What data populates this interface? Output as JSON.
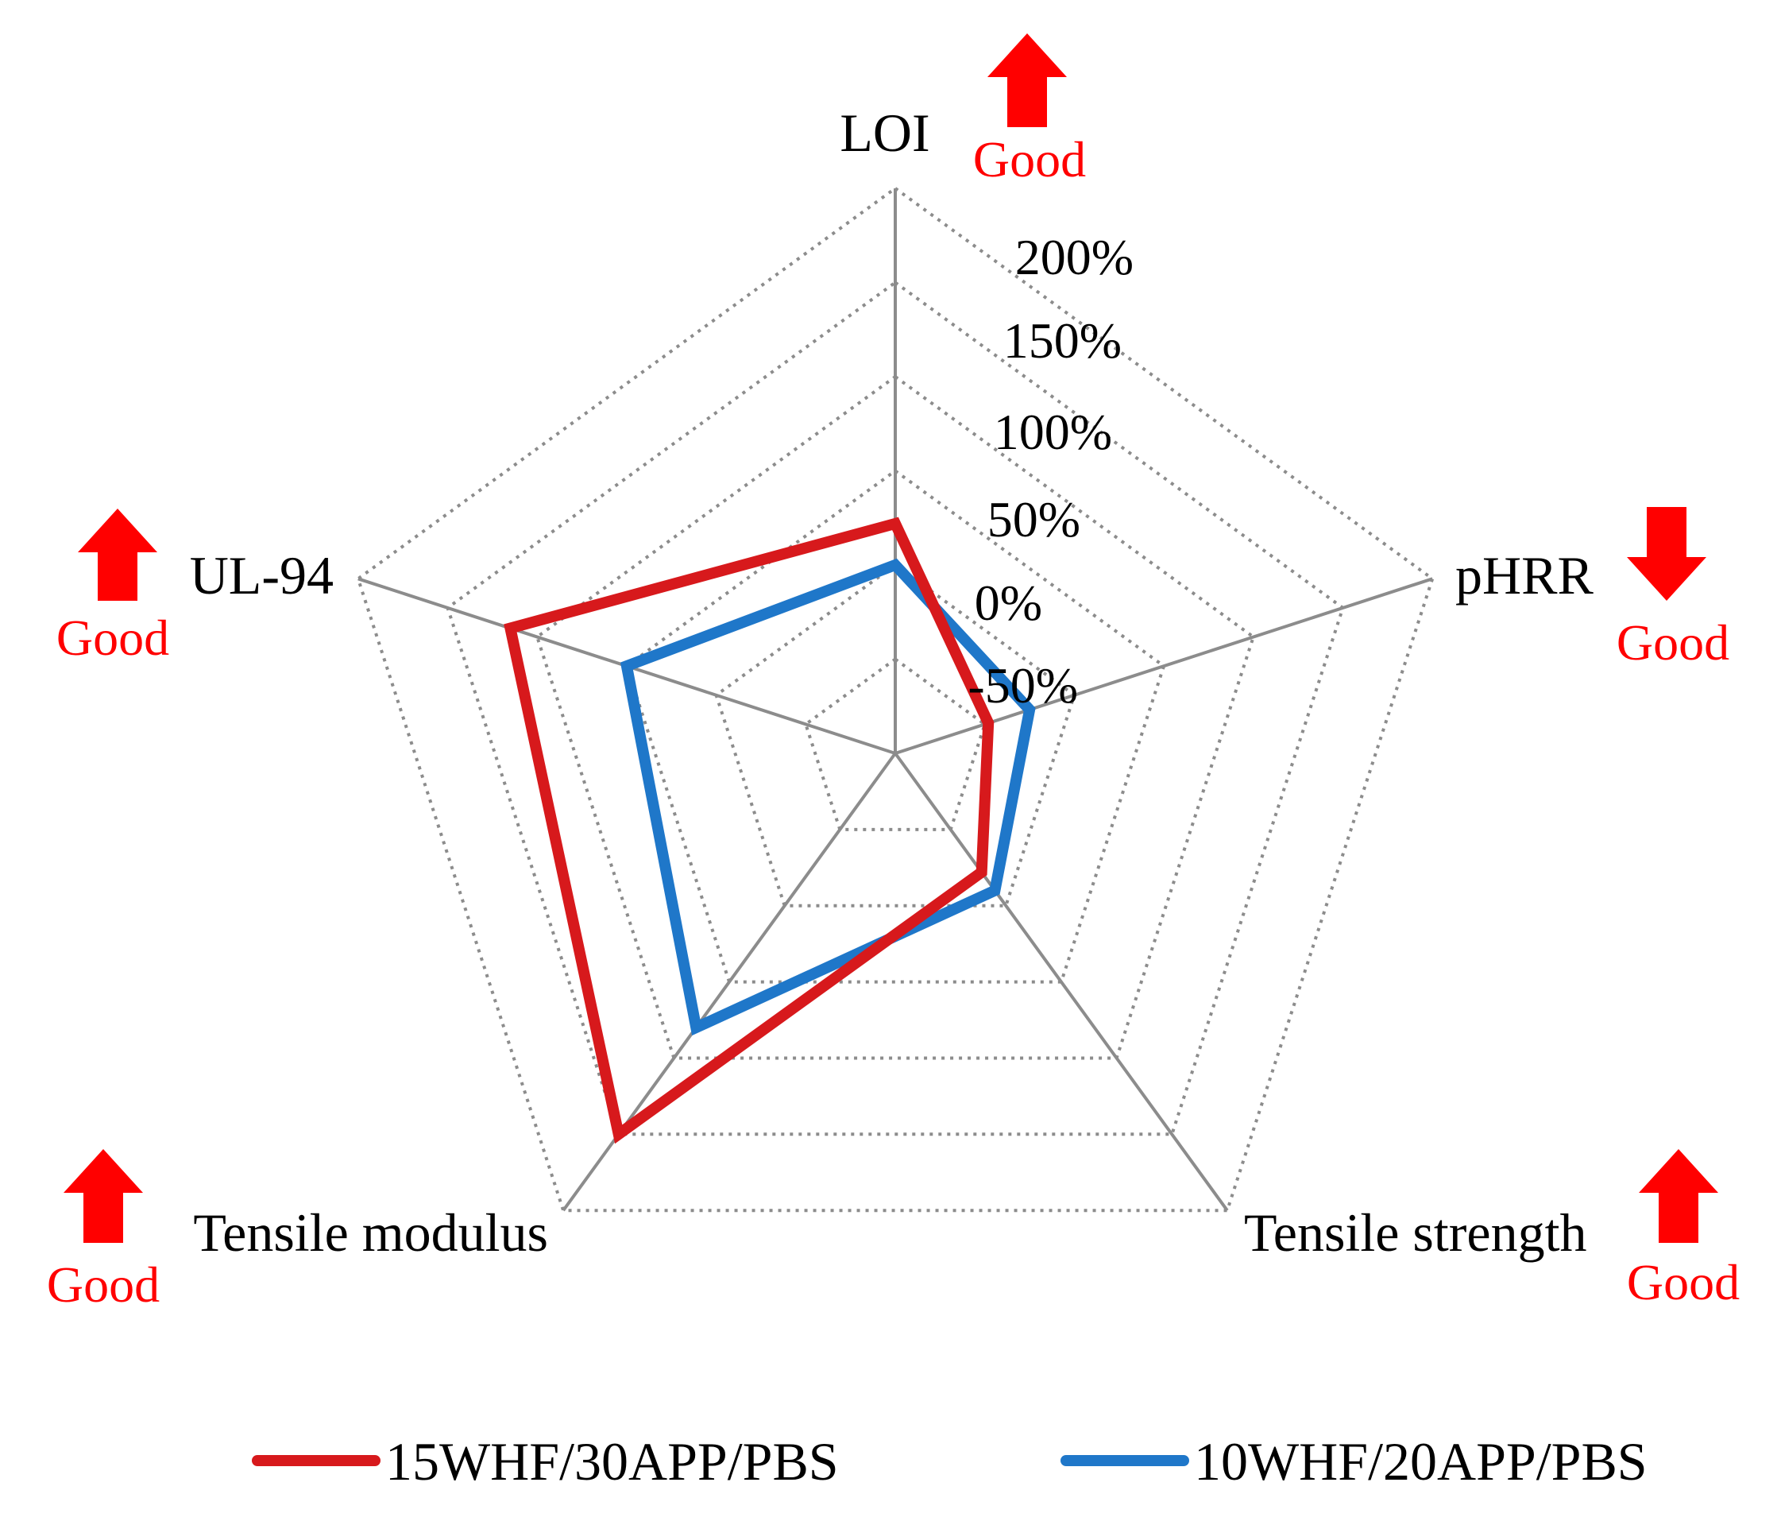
{
  "chart_data": {
    "type": "radar",
    "title": "",
    "axes": [
      "LOI",
      "pHRR",
      "Tensile strength",
      "Tensile modulus",
      "UL-94"
    ],
    "ticks": [
      "-50%",
      "0%",
      "50%",
      "100%",
      "150%",
      "200%"
    ],
    "range": [
      -100,
      200
    ],
    "tick_values": [
      -50,
      0,
      50,
      100,
      150,
      200
    ],
    "grid": true,
    "legend_position": "bottom",
    "series": [
      {
        "name": "15WHF/30APP/PBS",
        "color": "#d7191c",
        "values": [
          22,
          -48,
          -22,
          150,
          115
        ]
      },
      {
        "name": "10WHF/20APP/PBS",
        "color": "#1f77c9",
        "values": [
          0,
          -25,
          -10,
          80,
          50
        ]
      }
    ],
    "annotations": [
      {
        "axis": "LOI",
        "direction": "up",
        "text": "Good"
      },
      {
        "axis": "pHRR",
        "direction": "down",
        "text": "Good"
      },
      {
        "axis": "Tensile strength",
        "direction": "up",
        "text": "Good"
      },
      {
        "axis": "Tensile modulus",
        "direction": "up",
        "text": "Good"
      },
      {
        "axis": "UL-94",
        "direction": "up",
        "text": "Good"
      }
    ],
    "annotation_color": "#ff0000"
  }
}
